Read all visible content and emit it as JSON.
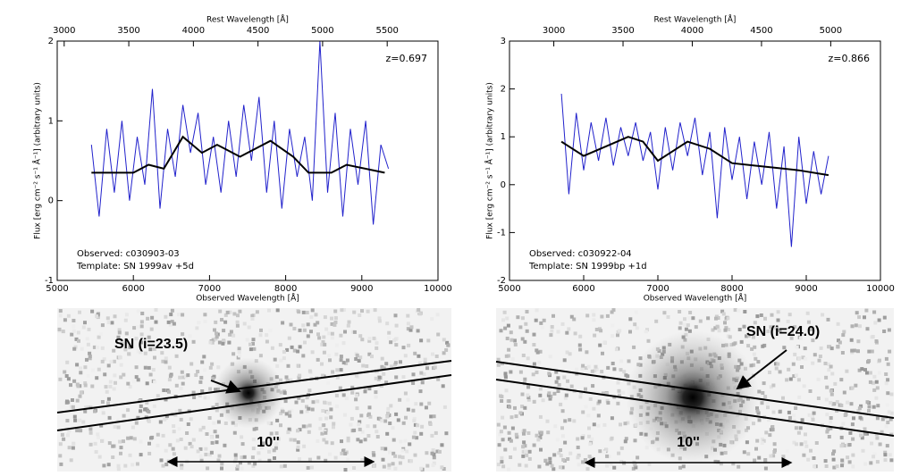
{
  "chart_data": [
    {
      "type": "line",
      "x2label": "Rest Wavelength [Å]",
      "xlabel": "Observed Wavelength [Å]",
      "ylabel": "Flux [erg cm⁻² s⁻¹ Å⁻¹]  (arbitrary units)",
      "annotation": "z=0.697",
      "xlim": [
        5000,
        10000
      ],
      "xticks": [
        5000,
        6000,
        7000,
        8000,
        9000,
        10000
      ],
      "x2lim": [
        2946,
        5893
      ],
      "x2ticks": [
        3000,
        3500,
        4000,
        4500,
        5000,
        5500
      ],
      "ylim": [
        -1,
        2
      ],
      "yticks": [
        -1,
        0,
        1,
        2
      ],
      "series": [
        {
          "name": "Observed:   c030903-03",
          "color": "#2222cc",
          "x": [
            5450,
            5550,
            5650,
            5750,
            5850,
            5950,
            6050,
            6150,
            6250,
            6350,
            6450,
            6550,
            6650,
            6750,
            6850,
            6950,
            7050,
            7150,
            7250,
            7350,
            7450,
            7550,
            7650,
            7750,
            7850,
            7950,
            8050,
            8150,
            8250,
            8350,
            8450,
            8550,
            8650,
            8750,
            8850,
            8950,
            9050,
            9150,
            9250,
            9350
          ],
          "values": [
            0.7,
            -0.2,
            0.9,
            0.1,
            1.0,
            0.0,
            0.8,
            0.2,
            1.4,
            -0.1,
            0.9,
            0.3,
            1.2,
            0.6,
            1.1,
            0.2,
            0.8,
            0.1,
            1.0,
            0.3,
            1.2,
            0.5,
            1.3,
            0.1,
            1.0,
            -0.1,
            0.9,
            0.3,
            0.8,
            0.0,
            2.0,
            0.1,
            1.1,
            -0.2,
            0.9,
            0.2,
            1.0,
            -0.3,
            0.7,
            0.4
          ]
        },
        {
          "name": "Template:   SN 1999av +5d",
          "color": "#000000",
          "x": [
            5450,
            6000,
            6200,
            6400,
            6650,
            6900,
            7100,
            7400,
            7800,
            8100,
            8300,
            8600,
            8800,
            9300
          ],
          "values": [
            0.35,
            0.35,
            0.45,
            0.4,
            0.8,
            0.6,
            0.7,
            0.55,
            0.75,
            0.55,
            0.35,
            0.35,
            0.45,
            0.35
          ]
        }
      ]
    },
    {
      "type": "line",
      "x2label": "Rest Wavelength [Å]",
      "xlabel": "Observed Wavelength [Å]",
      "ylabel": "Flux [erg cm⁻² s⁻¹ Å⁻¹]  (arbitrary units)",
      "annotation": "z=0.866",
      "xlim": [
        5000,
        10000
      ],
      "xticks": [
        5000,
        6000,
        7000,
        8000,
        9000,
        10000
      ],
      "x2lim": [
        2680,
        5359
      ],
      "x2ticks": [
        3000,
        3500,
        4000,
        4500,
        5000
      ],
      "ylim": [
        -2,
        3
      ],
      "yticks": [
        -2,
        -1,
        0,
        1,
        2,
        3
      ],
      "series": [
        {
          "name": "Observed:   c030922-04",
          "color": "#2222cc",
          "x": [
            5700,
            5800,
            5900,
            6000,
            6100,
            6200,
            6300,
            6400,
            6500,
            6600,
            6700,
            6800,
            6900,
            7000,
            7100,
            7200,
            7300,
            7400,
            7500,
            7600,
            7700,
            7800,
            7900,
            8000,
            8100,
            8200,
            8300,
            8400,
            8500,
            8600,
            8700,
            8800,
            8900,
            9000,
            9100,
            9200,
            9300
          ],
          "values": [
            1.9,
            -0.2,
            1.5,
            0.3,
            1.3,
            0.5,
            1.4,
            0.4,
            1.2,
            0.6,
            1.3,
            0.5,
            1.1,
            -0.1,
            1.2,
            0.3,
            1.3,
            0.6,
            1.4,
            0.2,
            1.1,
            -0.7,
            1.2,
            0.1,
            1.0,
            -0.3,
            0.9,
            0.0,
            1.1,
            -0.5,
            0.8,
            -1.3,
            1.0,
            -0.4,
            0.7,
            -0.2,
            0.6
          ]
        },
        {
          "name": "Template:   SN 1999bp +1d",
          "color": "#000000",
          "x": [
            5700,
            6000,
            6300,
            6600,
            6800,
            7000,
            7200,
            7400,
            7700,
            8000,
            8300,
            8600,
            8900,
            9300
          ],
          "values": [
            0.9,
            0.6,
            0.8,
            1.0,
            0.9,
            0.5,
            0.7,
            0.9,
            0.75,
            0.45,
            0.4,
            0.35,
            0.3,
            0.2
          ]
        }
      ]
    }
  ],
  "images": [
    {
      "label": "SN (i=23.5)",
      "scale": "10''"
    },
    {
      "label": "SN (i=24.0)",
      "scale": "10''"
    }
  ]
}
